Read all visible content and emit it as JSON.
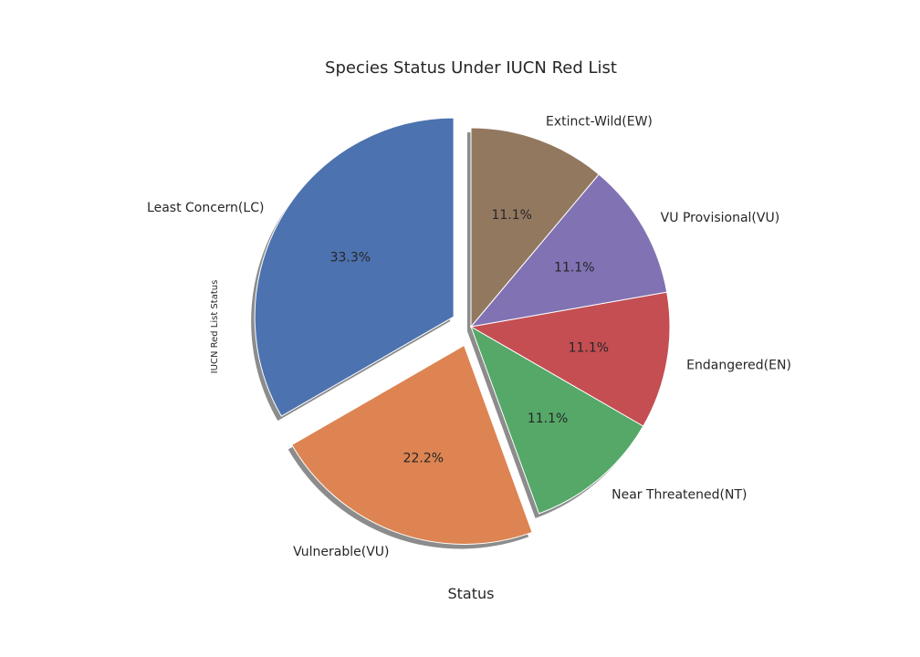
{
  "chart_data": {
    "type": "pie",
    "title": "Species Status Under IUCN Red List",
    "xlabel": "Status",
    "ylabel": "IUCN Red List Status",
    "start_angle_deg": 90,
    "direction": "counterclockwise",
    "shadow": true,
    "slices": [
      {
        "label": "Least Concern(LC)",
        "value": 33.3,
        "pct_label": "33.3%",
        "color": "#4c72b0",
        "exploded": true
      },
      {
        "label": "Vulnerable(VU)",
        "value": 22.2,
        "pct_label": "22.2%",
        "color": "#dd8452",
        "exploded": true
      },
      {
        "label": "Near Threatened(NT)",
        "value": 11.1,
        "pct_label": "11.1%",
        "color": "#55a868",
        "exploded": false
      },
      {
        "label": "Endangered(EN)",
        "value": 11.1,
        "pct_label": "11.1%",
        "color": "#c44e52",
        "exploded": false
      },
      {
        "label": "VU Provisional(VU)",
        "value": 11.1,
        "pct_label": "11.1%",
        "color": "#8172b3",
        "exploded": false
      },
      {
        "label": "Extinct-Wild(EW)",
        "value": 11.1,
        "pct_label": "11.1%",
        "color": "#937860",
        "exploded": false
      }
    ]
  }
}
